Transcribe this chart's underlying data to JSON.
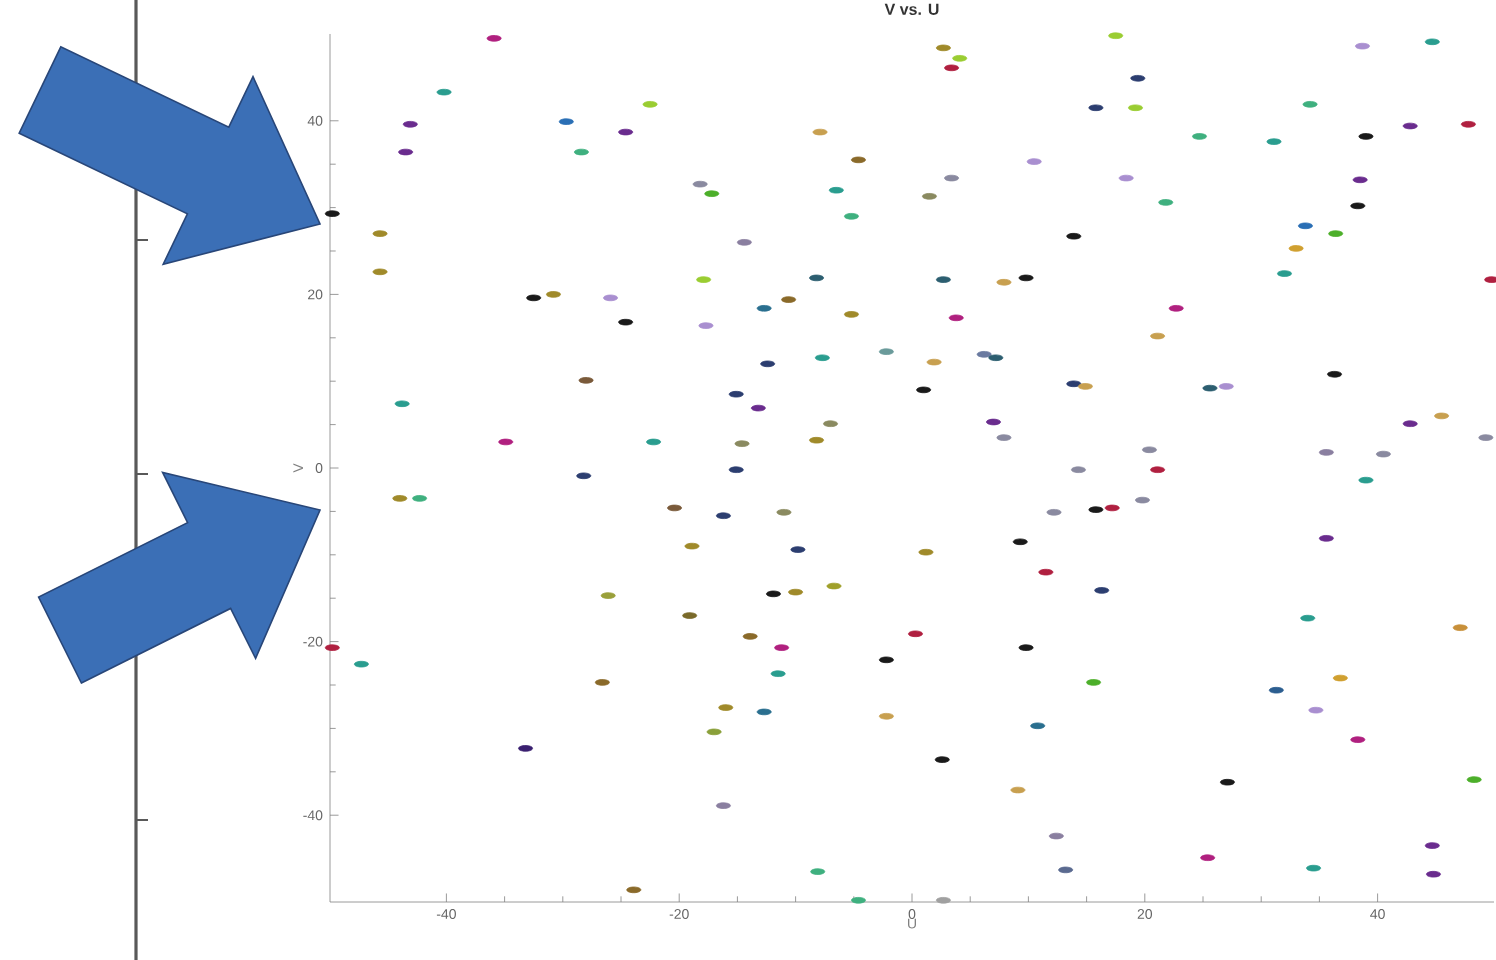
{
  "chart_data": {
    "type": "scatter",
    "title": "V vs. U",
    "xlabel": "U",
    "ylabel": "V",
    "xlim": [
      -50,
      50
    ],
    "ylim": [
      -50,
      50
    ],
    "xticks": [
      -40,
      -20,
      0,
      20,
      40
    ],
    "yticks": [
      -40,
      -20,
      0,
      20,
      40
    ],
    "x": [
      -35.9,
      -40.2,
      -43.1,
      -43.5,
      -49.8,
      -45.7,
      -45.7,
      -29.7,
      -28.4,
      -24.6,
      -22.5,
      -18.2,
      -17.2,
      -32.5,
      -30.8,
      -25.9,
      -24.6,
      -28.0,
      -43.8,
      -34.9,
      -22.2,
      -28.2,
      -44.0,
      -42.3,
      -20.4,
      -18.9,
      -26.1,
      -19.1,
      -26.6,
      -49.8,
      -47.3,
      -33.2,
      -23.9,
      -17.9,
      -17.7,
      2.7,
      4.1,
      3.4,
      15.8,
      -7.9,
      -4.6,
      -6.5,
      -5.2,
      1.5,
      3.4,
      10.5,
      13.9,
      -14.4,
      -8.2,
      -10.6,
      -12.7,
      -5.2,
      2.7,
      7.9,
      9.8,
      3.8,
      -7.7,
      -2.2,
      1.9,
      6.2,
      7.2,
      -12.4,
      -15.1,
      -13.2,
      1.0,
      13.9,
      14.9,
      -7.0,
      7.0,
      7.9,
      -8.2,
      -14.6,
      -15.1,
      14.3,
      -16.2,
      -11.0,
      -9.8,
      1.2,
      -11.9,
      -10.0,
      -6.7,
      -13.9,
      -11.2,
      -11.5,
      -2.2,
      0.3,
      -16.0,
      -12.7,
      -17.0,
      -2.2,
      -16.2,
      -8.1,
      -4.6,
      2.7,
      2.6,
      9.3,
      11.5,
      9.8,
      12.2,
      15.8,
      16.3,
      15.6,
      10.8,
      9.1,
      12.4,
      13.2,
      17.2,
      19.8,
      21.1,
      39.0,
      35.6,
      34.0,
      47.1,
      31.3,
      36.8,
      34.7,
      38.3,
      27.1,
      48.3,
      25.4,
      34.5,
      44.7,
      44.8,
      17.5,
      19.4,
      19.2,
      24.7,
      18.4,
      21.8,
      31.1,
      34.2,
      38.7,
      44.7,
      39.0,
      42.8,
      47.8,
      38.5,
      38.3,
      33.8,
      36.4,
      33.0,
      32.0,
      49.8,
      22.7,
      21.1,
      36.3,
      25.6,
      27.0,
      42.8,
      45.5,
      49.3,
      20.4,
      35.6,
      40.5
    ],
    "values": [
      49.5,
      43.3,
      39.6,
      36.4,
      29.3,
      27.0,
      22.6,
      39.9,
      36.4,
      38.7,
      41.9,
      32.7,
      31.6,
      19.6,
      20.0,
      19.6,
      16.8,
      10.1,
      7.4,
      3.0,
      3.0,
      -0.9,
      -3.5,
      -3.5,
      -4.6,
      -9.0,
      -14.7,
      -17.0,
      -24.7,
      -20.7,
      -22.6,
      -32.3,
      -48.6,
      21.7,
      16.4,
      48.4,
      47.2,
      46.1,
      41.5,
      38.7,
      35.5,
      32.0,
      29.0,
      31.3,
      33.4,
      35.3,
      26.7,
      26.0,
      21.9,
      19.4,
      18.4,
      17.7,
      21.7,
      21.4,
      21.9,
      17.3,
      12.7,
      13.4,
      12.2,
      13.1,
      12.7,
      12.0,
      8.5,
      6.9,
      9.0,
      9.7,
      9.4,
      5.1,
      5.3,
      3.5,
      3.2,
      2.8,
      -0.2,
      -0.2,
      -5.5,
      -5.1,
      -9.4,
      -9.7,
      -14.5,
      -14.3,
      -13.6,
      -19.4,
      -20.7,
      -23.7,
      -22.1,
      -19.1,
      -27.6,
      -28.1,
      -30.4,
      -28.6,
      -38.9,
      -46.5,
      -49.8,
      -49.8,
      -33.6,
      -8.5,
      -12.0,
      -20.7,
      -5.1,
      -4.8,
      -14.1,
      -24.7,
      -29.7,
      -37.1,
      -42.4,
      -46.3,
      -4.6,
      -3.7,
      -0.2,
      -1.4,
      -8.1,
      -17.3,
      -18.4,
      -25.6,
      -24.2,
      -27.9,
      -31.3,
      -36.2,
      -35.9,
      -44.9,
      -46.1,
      -43.5,
      -46.8,
      49.8,
      44.9,
      41.5,
      38.2,
      33.4,
      30.6,
      37.6,
      41.9,
      48.6,
      49.1,
      38.2,
      39.4,
      39.6,
      33.2,
      30.2,
      27.9,
      27.0,
      25.3,
      22.4,
      21.7,
      18.4,
      15.2,
      10.8,
      9.2,
      9.4,
      5.1,
      6.0,
      3.5,
      2.1,
      1.8,
      1.6
    ],
    "colors": [
      "#b0207f",
      "#2a9d8f",
      "#6a2c8e",
      "#6a2c8e",
      "#1a1a1a",
      "#a08a2a",
      "#a08a2a",
      "#2a6fb5",
      "#3fb07f",
      "#6a2c8e",
      "#9acd32",
      "#8a8aa0",
      "#4caf2a",
      "#1a1a1a",
      "#a08a2a",
      "#a98fd0",
      "#1a1a1a",
      "#7a5a3a",
      "#2a9d8f",
      "#b0207f",
      "#2a9d8f",
      "#2c3e70",
      "#a08a2a",
      "#3fb07f",
      "#7a5a3a",
      "#a08a2a",
      "#9aa03a",
      "#7a6a2a",
      "#8a6a2a",
      "#b02040",
      "#2a9d8f",
      "#3a2070",
      "#8a6a2a",
      "#9acd32",
      "#a98fd0",
      "#a08a2a",
      "#9acd32",
      "#b02040",
      "#2c3e70",
      "#c8a050",
      "#8a6a2a",
      "#2a9d8f",
      "#3fb07f",
      "#8a8a60",
      "#8a8aa0",
      "#a98fd0",
      "#1a1a1a",
      "#8a7fa0",
      "#2c5e70",
      "#8a6a2a",
      "#2a6f8f",
      "#a08a2a",
      "#2c5e70",
      "#c8a050",
      "#1a1a1a",
      "#b0207f",
      "#2a9d8f",
      "#6a9a9a",
      "#c8a050",
      "#6a7aa0",
      "#2c5e70",
      "#2c3e70",
      "#2c3e70",
      "#6a2c8e",
      "#1a1a1a",
      "#2c3e70",
      "#c8a050",
      "#8a8a60",
      "#6a2c8e",
      "#8a8aa0",
      "#a08a2a",
      "#8a8a60",
      "#2c3e70",
      "#8a8aa0",
      "#2c3e70",
      "#8a8a60",
      "#2c3e70",
      "#a08a2a",
      "#1a1a1a",
      "#a08a2a",
      "#a0a02a",
      "#8a6a2a",
      "#b0207f",
      "#2a9d8f",
      "#1a1a1a",
      "#b02040",
      "#a08a2a",
      "#2a6f8f",
      "#8aa03a",
      "#c8a050",
      "#8a7fa0",
      "#3fb07f",
      "#3fb07f",
      "#a0a0a0",
      "#1a1a1a",
      "#1a1a1a",
      "#b02040",
      "#1a1a1a",
      "#8a8aa0",
      "#1a1a1a",
      "#2c3e70",
      "#4caf2a",
      "#2a6f8f",
      "#c8a050",
      "#8a7fa0",
      "#5a6a90",
      "#b02040",
      "#8a8aa0",
      "#b02040",
      "#2a9d8f",
      "#6a2c8e",
      "#2a9d8f",
      "#c8903a",
      "#2c5e90",
      "#d0a030",
      "#a98fd0",
      "#b0207f",
      "#1a1a1a",
      "#4caf2a",
      "#b0207f",
      "#2a9d8f",
      "#6a2c8e",
      "#6a2c8e",
      "#9acd32",
      "#2c3e70",
      "#9acd32",
      "#3fb07f",
      "#a98fd0",
      "#3fb07f",
      "#2a9d8f",
      "#3fb07f",
      "#a98fd0",
      "#2a9d8f",
      "#1a1a1a",
      "#6a2c8e",
      "#b02040",
      "#6a2c8e",
      "#1a1a1a",
      "#2a6fb5",
      "#4caf2a",
      "#d0a030",
      "#2a9d8f",
      "#b02040",
      "#b0207f",
      "#c8a050",
      "#1a1a1a",
      "#2c5e70",
      "#a98fd0",
      "#6a2c8e",
      "#c8a050",
      "#8a8aa0",
      "#8a8aa0",
      "#8a7fa0",
      "#8a8aa0"
    ]
  }
}
